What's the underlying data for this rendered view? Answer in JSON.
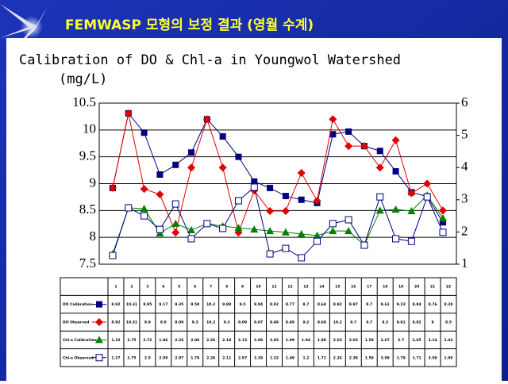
{
  "header": {
    "title": "FEMWASP 모형의 보정 결과 (영월 수계)"
  },
  "chart_data": {
    "type": "line",
    "title": "Calibration of DO & Chl-a in Youngwol Watershed",
    "y_label": "(mg/L)",
    "categories": [
      "1",
      "2",
      "3",
      "4",
      "5",
      "6",
      "7",
      "8",
      "9",
      "10",
      "11",
      "12",
      "13",
      "14",
      "15",
      "16",
      "17",
      "18",
      "19",
      "20",
      "21",
      "22"
    ],
    "ylim": [
      7.5,
      10.5
    ],
    "yticks": [
      7.5,
      8,
      8.5,
      9,
      9.5,
      10,
      10.5
    ],
    "y2lim": [
      1,
      6
    ],
    "y2ticks": [
      1,
      2,
      3,
      4,
      5,
      6
    ],
    "grid": true,
    "series": [
      {
        "name": "DO Calibration",
        "color": "#000080",
        "marker": "square",
        "axis": "y",
        "values": [
          8.92,
          10.31,
          9.95,
          9.17,
          9.35,
          9.58,
          10.2,
          9.88,
          9.5,
          9.04,
          8.92,
          8.77,
          8.7,
          8.64,
          9.92,
          9.97,
          9.7,
          9.61,
          9.23,
          8.84,
          8.76,
          8.28
        ]
      },
      {
        "name": "DO Observed",
        "color": "#e00000",
        "marker": "diamond",
        "axis": "y",
        "values": [
          8.92,
          10.31,
          8.9,
          8.8,
          8.09,
          9.3,
          10.2,
          9.3,
          8.09,
          8.87,
          8.49,
          8.49,
          9.2,
          8.68,
          10.2,
          9.7,
          9.7,
          9.3,
          9.81,
          8.82,
          9.0,
          8.5
        ]
      },
      {
        "name": "Chl-a Calibration",
        "color": "#008000",
        "marker": "triangle",
        "axis": "y2",
        "values": [
          1.32,
          2.75,
          2.72,
          1.96,
          2.26,
          2.06,
          2.26,
          2.18,
          2.13,
          2.08,
          2.03,
          1.99,
          1.94,
          1.89,
          2.03,
          2.03,
          1.59,
          2.67,
          2.7,
          2.65,
          3.14,
          2.43
        ]
      },
      {
        "name": "Chl-a Observed",
        "color": "#000080",
        "marker": "open-square",
        "axis": "y2",
        "values": [
          1.27,
          2.75,
          2.5,
          2.08,
          2.87,
          1.79,
          2.26,
          2.11,
          2.97,
          3.39,
          1.32,
          1.49,
          1.2,
          1.71,
          2.26,
          2.38,
          1.59,
          3.09,
          1.79,
          1.71,
          3.09,
          1.99
        ]
      }
    ]
  }
}
